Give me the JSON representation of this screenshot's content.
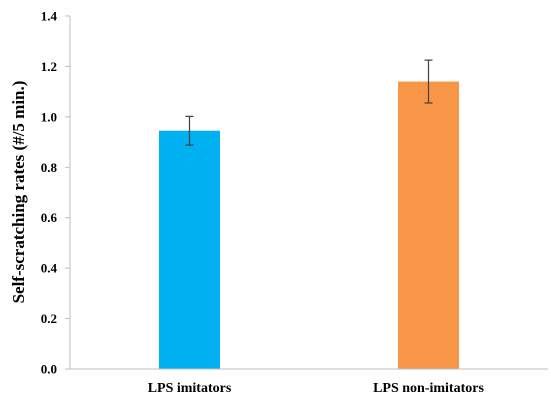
{
  "chart_data": {
    "type": "bar",
    "title": "",
    "xlabel": "",
    "ylabel": "Self-scratching rates (#/5 min.)",
    "ylim": [
      0,
      1.4
    ],
    "yticks": [
      "0.0",
      "0.2",
      "0.4",
      "0.6",
      "0.8",
      "1.0",
      "1.2",
      "1.4"
    ],
    "grid": false,
    "categories": [
      "LPS imitators",
      "LPS non-imitators"
    ],
    "values": [
      0.945,
      1.14
    ],
    "errors": [
      0.057,
      0.085
    ],
    "colors": [
      "#00b0f0",
      "#f79646"
    ]
  }
}
